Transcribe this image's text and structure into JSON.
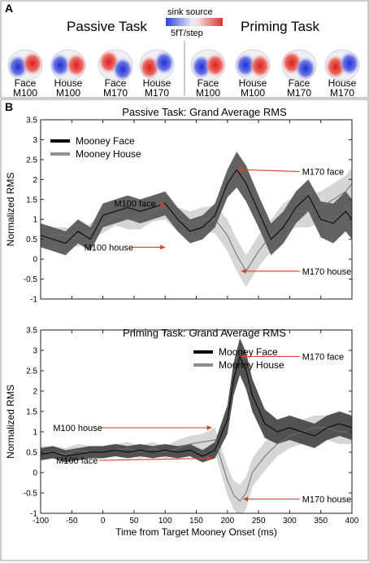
{
  "panel_a": {
    "letter": "A",
    "passive_title": "Passive Task",
    "priming_title": "Priming Task",
    "scale": {
      "top": "sink source",
      "bottom": "5fT/step",
      "sink_color": "#3a4cd8",
      "source_color": "#e0302c"
    },
    "maps": [
      {
        "top": "Face",
        "bottom": "M100"
      },
      {
        "top": "House",
        "bottom": "M100"
      },
      {
        "top": "Face",
        "bottom": "M170"
      },
      {
        "top": "House",
        "bottom": "M170"
      },
      {
        "top": "Face",
        "bottom": "M100"
      },
      {
        "top": "House",
        "bottom": "M100"
      },
      {
        "top": "Face",
        "bottom": "M170"
      },
      {
        "top": "House",
        "bottom": "M170"
      }
    ]
  },
  "panel_b": {
    "letter": "B"
  },
  "chart_data": [
    {
      "type": "line",
      "title": "Passive Task: Grand Average RMS",
      "xlabel": "",
      "ylabel": "Normalized RMS",
      "xlim": [
        -100,
        400
      ],
      "ylim": [
        -1,
        3.5
      ],
      "xticks": [],
      "yticks": [
        "3.5",
        "3",
        "2.5",
        "2",
        "1.5",
        "1",
        "0.5",
        "0",
        "-0.5",
        "-1"
      ],
      "legend": "top-left",
      "grid": false,
      "series": [
        {
          "name": "Mooney Face",
          "color": "#111111",
          "band_color": "#5a5a5a",
          "x": [
            -100,
            -80,
            -60,
            -40,
            -20,
            0,
            20,
            40,
            60,
            80,
            100,
            120,
            140,
            160,
            180,
            200,
            215,
            230,
            250,
            270,
            290,
            310,
            330,
            350,
            370,
            390,
            400
          ],
          "y": [
            0.6,
            0.5,
            0.4,
            0.7,
            0.5,
            1.1,
            1.2,
            1.3,
            1.2,
            1.3,
            1.4,
            1.0,
            0.7,
            0.8,
            1.1,
            1.9,
            2.25,
            1.9,
            1.2,
            0.5,
            0.8,
            1.3,
            1.6,
            1.0,
            0.9,
            1.2,
            1.0
          ],
          "se": [
            0.3,
            0.3,
            0.3,
            0.3,
            0.3,
            0.3,
            0.3,
            0.3,
            0.3,
            0.3,
            0.3,
            0.3,
            0.3,
            0.3,
            0.3,
            0.35,
            0.45,
            0.45,
            0.4,
            0.4,
            0.4,
            0.4,
            0.4,
            0.45,
            0.5,
            0.5,
            0.5
          ]
        },
        {
          "name": "Mooney House",
          "color": "#8c8c8c",
          "band_color": "#d2d2d2",
          "x": [
            -100,
            -80,
            -60,
            -40,
            -20,
            0,
            20,
            40,
            60,
            80,
            100,
            120,
            140,
            160,
            180,
            200,
            215,
            230,
            250,
            270,
            290,
            310,
            330,
            350,
            370,
            390,
            400
          ],
          "y": [
            0.5,
            0.6,
            0.6,
            0.5,
            0.7,
            0.9,
            1.1,
            1.0,
            1.0,
            1.2,
            1.3,
            1.0,
            0.9,
            1.0,
            1.0,
            0.6,
            0.1,
            -0.3,
            0.2,
            0.6,
            1.0,
            1.2,
            1.2,
            1.3,
            1.5,
            1.7,
            1.9
          ],
          "se": [
            0.2,
            0.2,
            0.2,
            0.2,
            0.2,
            0.25,
            0.25,
            0.25,
            0.25,
            0.25,
            0.3,
            0.3,
            0.3,
            0.3,
            0.35,
            0.4,
            0.4,
            0.4,
            0.4,
            0.4,
            0.4,
            0.4,
            0.4,
            0.4,
            0.4,
            0.4,
            0.4
          ]
        }
      ],
      "annotations": [
        {
          "text": "M100 face",
          "tx": 18,
          "ty": 1.4,
          "ax": 100,
          "ay": 1.35,
          "align": "left"
        },
        {
          "text": "M100 house",
          "tx": -30,
          "ty": 0.3,
          "ax": 100,
          "ay": 0.3,
          "align": "left"
        },
        {
          "text": "M170 face",
          "tx": 320,
          "ty": 2.2,
          "ax": 215,
          "ay": 2.25,
          "align": "left"
        },
        {
          "text": "M170 house",
          "tx": 320,
          "ty": -0.3,
          "ax": 222,
          "ay": -0.3,
          "align": "left"
        }
      ]
    },
    {
      "type": "line",
      "title": "Priming Task: Grand Average RMS",
      "xlabel": "Time from Target Mooney Onset (ms)",
      "ylabel": "Normalized RMS",
      "xlim": [
        -100,
        400
      ],
      "ylim": [
        -1,
        3.5
      ],
      "xticks": [
        "-100",
        "-50",
        "0",
        "50",
        "100",
        "150",
        "200",
        "250",
        "300",
        "350",
        "400"
      ],
      "yticks": [
        "3.5",
        "3",
        "2.5",
        "2",
        "1.5",
        "1",
        "0.5",
        "0",
        "-0.5",
        "-1"
      ],
      "legend": "top-right",
      "grid": false,
      "series": [
        {
          "name": "Mooney Face",
          "color": "#111111",
          "band_color": "#4a4a4a",
          "x": [
            -100,
            -80,
            -60,
            -40,
            -20,
            0,
            20,
            40,
            60,
            80,
            100,
            120,
            140,
            160,
            180,
            200,
            210,
            220,
            230,
            240,
            260,
            280,
            300,
            320,
            340,
            360,
            380,
            400
          ],
          "y": [
            0.45,
            0.5,
            0.4,
            0.45,
            0.5,
            0.5,
            0.55,
            0.5,
            0.55,
            0.5,
            0.55,
            0.5,
            0.55,
            0.4,
            0.55,
            1.3,
            2.3,
            2.85,
            2.5,
            1.9,
            1.2,
            1.0,
            1.1,
            1.0,
            0.9,
            1.1,
            1.2,
            1.1
          ],
          "se": [
            0.15,
            0.15,
            0.15,
            0.15,
            0.15,
            0.15,
            0.15,
            0.15,
            0.15,
            0.15,
            0.15,
            0.15,
            0.15,
            0.15,
            0.2,
            0.35,
            0.4,
            0.45,
            0.45,
            0.4,
            0.35,
            0.3,
            0.3,
            0.3,
            0.3,
            0.3,
            0.3,
            0.3
          ]
        },
        {
          "name": "Mooney House",
          "color": "#8c8c8c",
          "band_color": "#d2d2d2",
          "x": [
            -100,
            -80,
            -60,
            -40,
            -20,
            0,
            20,
            40,
            60,
            80,
            100,
            120,
            140,
            160,
            180,
            200,
            210,
            220,
            230,
            240,
            260,
            280,
            300,
            320,
            340,
            360,
            380,
            400
          ],
          "y": [
            0.5,
            0.5,
            0.45,
            0.55,
            0.5,
            0.5,
            0.55,
            0.6,
            0.5,
            0.6,
            0.5,
            0.6,
            0.7,
            0.75,
            0.8,
            -0.2,
            -0.55,
            -0.7,
            -0.5,
            0.0,
            0.4,
            0.7,
            0.9,
            1.0,
            1.1,
            1.1,
            1.0,
            1.0
          ],
          "se": [
            0.15,
            0.15,
            0.15,
            0.15,
            0.15,
            0.15,
            0.15,
            0.15,
            0.15,
            0.15,
            0.15,
            0.2,
            0.2,
            0.2,
            0.3,
            0.35,
            0.35,
            0.4,
            0.4,
            0.35,
            0.35,
            0.3,
            0.3,
            0.3,
            0.3,
            0.3,
            0.3,
            0.3
          ]
        }
      ],
      "annotations": [
        {
          "text": "M100 house",
          "tx": -80,
          "ty": 1.1,
          "ax": 175,
          "ay": 1.1,
          "align": "left"
        },
        {
          "text": "M100 face",
          "tx": -75,
          "ty": 0.3,
          "ax": 175,
          "ay": 0.35,
          "align": "left"
        },
        {
          "text": "M170 face",
          "tx": 320,
          "ty": 2.85,
          "ax": 222,
          "ay": 2.85,
          "align": "left"
        },
        {
          "text": "M170 house",
          "tx": 320,
          "ty": -0.65,
          "ax": 225,
          "ay": -0.65,
          "align": "left"
        }
      ]
    }
  ]
}
